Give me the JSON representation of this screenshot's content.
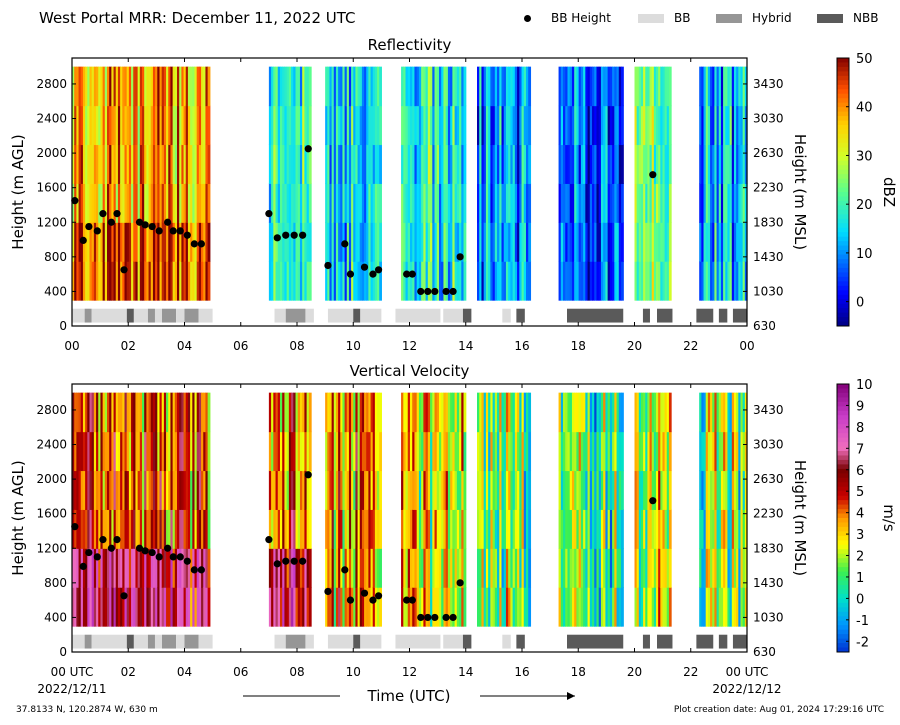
{
  "header": {
    "title": "West Portal MRR:  December 11, 2022 UTC"
  },
  "legend": [
    {
      "label": "BB Height",
      "kind": "dot",
      "color": "#000000"
    },
    {
      "label": "BB",
      "kind": "swatch",
      "color": "#dcdcdc"
    },
    {
      "label": "Hybrid",
      "kind": "swatch",
      "color": "#969696"
    },
    {
      "label": "NBB",
      "kind": "swatch",
      "color": "#5a5a5a"
    }
  ],
  "footer": {
    "location": "37.8133 N, 120.2874 W, 630 m",
    "creation": "Plot creation date: Aug 01, 2024 17:29:16 UTC"
  },
  "colors": {
    "bb": "#dcdcdc",
    "hybrid": "#969696",
    "nbb": "#5a5a5a",
    "dot": "#000000"
  },
  "chart_data": [
    {
      "type": "heatmap",
      "title": "Reflectivity",
      "xlabel": "",
      "ylabel": "Height (m AGL)",
      "ylabel_right": "Height (m MSL)",
      "xlim": [
        0,
        24
      ],
      "ylim": [
        0,
        3100
      ],
      "x_ticks": [
        "00",
        "02",
        "04",
        "06",
        "08",
        "10",
        "12",
        "14",
        "16",
        "18",
        "20",
        "22",
        "00"
      ],
      "y_ticks": [
        0,
        400,
        800,
        1200,
        1600,
        2000,
        2400,
        2800
      ],
      "y_ticks_right": [
        630,
        1030,
        1430,
        1830,
        2230,
        2630,
        3030,
        3430
      ],
      "colorbar": {
        "label": "dBZ",
        "range": [
          -5,
          50
        ],
        "ticks": [
          0,
          10,
          20,
          30,
          40,
          50
        ],
        "colormap": "jet"
      },
      "data_segments": [
        {
          "start": 0.0,
          "end": 4.9,
          "top": 3000,
          "bottom": 300,
          "mean_value": 38
        },
        {
          "start": 7.0,
          "end": 8.5,
          "top": 3000,
          "bottom": 300,
          "mean_value": 17
        },
        {
          "start": 9.0,
          "end": 11.0,
          "top": 3000,
          "bottom": 300,
          "mean_value": 15
        },
        {
          "start": 11.7,
          "end": 14.0,
          "top": 3000,
          "bottom": 300,
          "mean_value": 20
        },
        {
          "start": 14.4,
          "end": 16.3,
          "top": 3000,
          "bottom": 300,
          "mean_value": 10
        },
        {
          "start": 17.3,
          "end": 19.6,
          "top": 3000,
          "bottom": 300,
          "mean_value": 6
        },
        {
          "start": 20.0,
          "end": 21.3,
          "top": 3000,
          "bottom": 300,
          "mean_value": 25
        },
        {
          "start": 22.3,
          "end": 24.0,
          "top": 3000,
          "bottom": 300,
          "mean_value": 12
        }
      ],
      "bright_band_heights": {
        "x": [
          0.1,
          0.4,
          0.6,
          0.9,
          1.1,
          1.4,
          1.6,
          1.85,
          2.4,
          2.6,
          2.85,
          3.1,
          3.4,
          3.6,
          3.85,
          4.1,
          4.35,
          4.6,
          7.0,
          7.3,
          7.6,
          7.9,
          8.2,
          8.4,
          9.1,
          9.7,
          9.9,
          10.4,
          10.7,
          10.9,
          11.9,
          12.1,
          12.4,
          12.65,
          12.9,
          13.3,
          13.55,
          13.8,
          20.65
        ],
        "y": [
          1450,
          990,
          1150,
          1100,
          1300,
          1200,
          1300,
          650,
          1200,
          1170,
          1150,
          1100,
          1200,
          1100,
          1100,
          1050,
          950,
          950,
          1300,
          1020,
          1050,
          1050,
          1050,
          2050,
          700,
          950,
          600,
          680,
          600,
          650,
          600,
          600,
          400,
          400,
          400,
          400,
          400,
          800,
          1750
        ]
      },
      "bb_type_bar": [
        {
          "start": 0.0,
          "end": 0.45,
          "type": "BB"
        },
        {
          "start": 0.45,
          "end": 0.7,
          "type": "Hybrid"
        },
        {
          "start": 0.7,
          "end": 1.95,
          "type": "BB"
        },
        {
          "start": 1.95,
          "end": 2.2,
          "type": "NBB"
        },
        {
          "start": 2.2,
          "end": 2.7,
          "type": "BB"
        },
        {
          "start": 2.7,
          "end": 2.95,
          "type": "Hybrid"
        },
        {
          "start": 2.95,
          "end": 3.2,
          "type": "BB"
        },
        {
          "start": 3.2,
          "end": 3.7,
          "type": "Hybrid"
        },
        {
          "start": 3.7,
          "end": 4.0,
          "type": "BB"
        },
        {
          "start": 4.0,
          "end": 4.5,
          "type": "Hybrid"
        },
        {
          "start": 4.5,
          "end": 5.0,
          "type": "BB"
        },
        {
          "start": 7.2,
          "end": 7.6,
          "type": "BB"
        },
        {
          "start": 7.6,
          "end": 8.3,
          "type": "Hybrid"
        },
        {
          "start": 8.3,
          "end": 8.6,
          "type": "BB"
        },
        {
          "start": 9.1,
          "end": 10.0,
          "type": "BB"
        },
        {
          "start": 10.0,
          "end": 10.25,
          "type": "NBB"
        },
        {
          "start": 10.25,
          "end": 11.0,
          "type": "BB"
        },
        {
          "start": 11.5,
          "end": 13.1,
          "type": "BB"
        },
        {
          "start": 13.2,
          "end": 13.9,
          "type": "BB"
        },
        {
          "start": 13.9,
          "end": 14.2,
          "type": "NBB"
        },
        {
          "start": 15.3,
          "end": 15.6,
          "type": "BB"
        },
        {
          "start": 15.8,
          "end": 16.1,
          "type": "NBB"
        },
        {
          "start": 17.6,
          "end": 19.6,
          "type": "NBB"
        },
        {
          "start": 20.3,
          "end": 20.55,
          "type": "NBB"
        },
        {
          "start": 20.8,
          "end": 21.35,
          "type": "NBB"
        },
        {
          "start": 22.2,
          "end": 22.8,
          "type": "NBB"
        },
        {
          "start": 23.0,
          "end": 23.3,
          "type": "NBB"
        },
        {
          "start": 23.5,
          "end": 24.0,
          "type": "NBB"
        }
      ]
    },
    {
      "type": "heatmap",
      "title": "Vertical Velocity",
      "xlabel": "Time (UTC)",
      "ylabel": "Height (m AGL)",
      "ylabel_right": "Height (m MSL)",
      "xlim": [
        0,
        24
      ],
      "ylim": [
        0,
        3100
      ],
      "x_ticks": [
        "00 UTC",
        "02",
        "04",
        "06",
        "08",
        "10",
        "12",
        "14",
        "16",
        "18",
        "20",
        "22",
        "00 UTC"
      ],
      "x_subticks": {
        "first": "2022/12/11",
        "last": "2022/12/12"
      },
      "y_ticks": [
        0,
        400,
        800,
        1200,
        1600,
        2000,
        2400,
        2800
      ],
      "y_ticks_right": [
        630,
        1030,
        1430,
        1830,
        2230,
        2630,
        3030,
        3430
      ],
      "colorbar": {
        "label": "m/s",
        "range": [
          -2.5,
          10
        ],
        "ticks": [
          -2,
          -1,
          0,
          1,
          2,
          3,
          4,
          5,
          6,
          7,
          8,
          9,
          10
        ],
        "colormap": "nws_velocity"
      },
      "data_segments": [
        {
          "start": 0.0,
          "end": 4.9,
          "top": 3000,
          "bottom": 300,
          "mean_value": 4
        },
        {
          "start": 7.0,
          "end": 8.5,
          "top": 3000,
          "bottom": 300,
          "mean_value": 4
        },
        {
          "start": 9.0,
          "end": 11.0,
          "top": 3000,
          "bottom": 300,
          "mean_value": 3.5
        },
        {
          "start": 11.7,
          "end": 14.0,
          "top": 3000,
          "bottom": 300,
          "mean_value": 2.5
        },
        {
          "start": 14.4,
          "end": 16.3,
          "top": 3000,
          "bottom": 300,
          "mean_value": 1.5
        },
        {
          "start": 17.3,
          "end": 19.6,
          "top": 3000,
          "bottom": 300,
          "mean_value": 0.8
        },
        {
          "start": 20.0,
          "end": 21.3,
          "top": 3000,
          "bottom": 300,
          "mean_value": 2.5
        },
        {
          "start": 22.3,
          "end": 24.0,
          "top": 3000,
          "bottom": 300,
          "mean_value": 1.5
        }
      ],
      "bright_band_heights": {
        "x": [
          0.1,
          0.4,
          0.6,
          0.9,
          1.1,
          1.4,
          1.6,
          1.85,
          2.4,
          2.6,
          2.85,
          3.1,
          3.4,
          3.6,
          3.85,
          4.1,
          4.35,
          4.6,
          7.0,
          7.3,
          7.6,
          7.9,
          8.2,
          8.4,
          9.1,
          9.7,
          9.9,
          10.4,
          10.7,
          10.9,
          11.9,
          12.1,
          12.4,
          12.65,
          12.9,
          13.3,
          13.55,
          13.8,
          20.65
        ],
        "y": [
          1450,
          990,
          1150,
          1100,
          1300,
          1200,
          1300,
          650,
          1200,
          1170,
          1150,
          1100,
          1200,
          1100,
          1100,
          1050,
          950,
          950,
          1300,
          1020,
          1050,
          1050,
          1050,
          2050,
          700,
          950,
          600,
          680,
          600,
          650,
          600,
          600,
          400,
          400,
          400,
          400,
          400,
          800,
          1750
        ]
      },
      "bb_type_bar": [
        {
          "start": 0.0,
          "end": 0.45,
          "type": "BB"
        },
        {
          "start": 0.45,
          "end": 0.7,
          "type": "Hybrid"
        },
        {
          "start": 0.7,
          "end": 1.95,
          "type": "BB"
        },
        {
          "start": 1.95,
          "end": 2.2,
          "type": "NBB"
        },
        {
          "start": 2.2,
          "end": 2.7,
          "type": "BB"
        },
        {
          "start": 2.7,
          "end": 2.95,
          "type": "Hybrid"
        },
        {
          "start": 2.95,
          "end": 3.2,
          "type": "BB"
        },
        {
          "start": 3.2,
          "end": 3.7,
          "type": "Hybrid"
        },
        {
          "start": 3.7,
          "end": 4.0,
          "type": "BB"
        },
        {
          "start": 4.0,
          "end": 4.5,
          "type": "Hybrid"
        },
        {
          "start": 4.5,
          "end": 5.0,
          "type": "BB"
        },
        {
          "start": 7.2,
          "end": 7.6,
          "type": "BB"
        },
        {
          "start": 7.6,
          "end": 8.3,
          "type": "Hybrid"
        },
        {
          "start": 8.3,
          "end": 8.6,
          "type": "BB"
        },
        {
          "start": 9.1,
          "end": 10.0,
          "type": "BB"
        },
        {
          "start": 10.0,
          "end": 10.25,
          "type": "NBB"
        },
        {
          "start": 10.25,
          "end": 11.0,
          "type": "BB"
        },
        {
          "start": 11.5,
          "end": 13.1,
          "type": "BB"
        },
        {
          "start": 13.2,
          "end": 13.9,
          "type": "BB"
        },
        {
          "start": 13.9,
          "end": 14.2,
          "type": "NBB"
        },
        {
          "start": 15.3,
          "end": 15.6,
          "type": "BB"
        },
        {
          "start": 15.8,
          "end": 16.1,
          "type": "NBB"
        },
        {
          "start": 17.6,
          "end": 19.6,
          "type": "NBB"
        },
        {
          "start": 20.3,
          "end": 20.55,
          "type": "NBB"
        },
        {
          "start": 20.8,
          "end": 21.35,
          "type": "NBB"
        },
        {
          "start": 22.2,
          "end": 22.8,
          "type": "NBB"
        },
        {
          "start": 23.0,
          "end": 23.3,
          "type": "NBB"
        },
        {
          "start": 23.5,
          "end": 24.0,
          "type": "NBB"
        }
      ]
    }
  ]
}
